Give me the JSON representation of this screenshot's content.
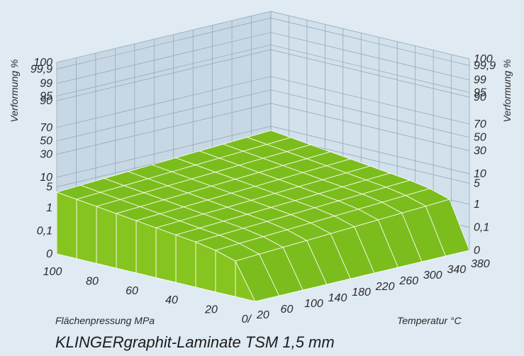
{
  "chart_data": {
    "type": "surface3d",
    "title": "KLINGERgraphit-Laminate TSM  1,5 mm",
    "xlabel": "Flächenpressung MPa",
    "ylabel": "Temperatur °C",
    "zlabel_left": "Verformung %",
    "zlabel_right": "Verformung %",
    "x_ticks": [
      "100",
      "80",
      "60",
      "40",
      "20",
      "0"
    ],
    "y_ticks": [
      "20",
      "60",
      "100",
      "140",
      "180",
      "220",
      "260",
      "300",
      "340",
      "380"
    ],
    "z_ticks": [
      "100",
      "99,9",
      "99",
      "95",
      "90",
      "70",
      "50",
      "30",
      "10",
      "5",
      "1",
      "0,1",
      "0"
    ],
    "pressure_values": [
      0,
      10,
      20,
      30,
      40,
      50,
      60,
      70,
      80,
      90,
      100
    ],
    "temperature_values": [
      20,
      60,
      100,
      140,
      180,
      220,
      260,
      300,
      340,
      380
    ],
    "deformation_level": [
      [
        0.0,
        0.3,
        0.35,
        0.38,
        0.4,
        0.42,
        0.44,
        0.46,
        0.48,
        0.5,
        0.52
      ],
      [
        0.0,
        0.31,
        0.36,
        0.39,
        0.41,
        0.43,
        0.45,
        0.47,
        0.49,
        0.51,
        0.53
      ],
      [
        0.0,
        0.32,
        0.37,
        0.4,
        0.42,
        0.44,
        0.46,
        0.48,
        0.5,
        0.52,
        0.54
      ],
      [
        0.0,
        0.33,
        0.38,
        0.41,
        0.43,
        0.45,
        0.47,
        0.49,
        0.51,
        0.53,
        0.55
      ],
      [
        0.0,
        0.34,
        0.39,
        0.42,
        0.44,
        0.46,
        0.48,
        0.5,
        0.52,
        0.54,
        0.56
      ],
      [
        0.0,
        0.35,
        0.4,
        0.43,
        0.45,
        0.47,
        0.49,
        0.51,
        0.53,
        0.55,
        0.57
      ],
      [
        0.0,
        0.36,
        0.41,
        0.44,
        0.46,
        0.48,
        0.5,
        0.52,
        0.54,
        0.56,
        0.58
      ],
      [
        0.0,
        0.37,
        0.42,
        0.45,
        0.47,
        0.49,
        0.51,
        0.53,
        0.55,
        0.57,
        0.59
      ],
      [
        0.0,
        0.38,
        0.43,
        0.46,
        0.48,
        0.5,
        0.52,
        0.54,
        0.56,
        0.58,
        0.6
      ],
      [
        0.0,
        0.39,
        0.44,
        0.47,
        0.49,
        0.51,
        0.53,
        0.55,
        0.57,
        0.59,
        0.61
      ]
    ],
    "colors": {
      "background": "#dfeaf2",
      "surface": "#7cbd1e",
      "surface_side": "#86c41f",
      "mesh": "#ffffff",
      "grid": "#8ca4b6",
      "wall": "#c7d8e4"
    }
  }
}
